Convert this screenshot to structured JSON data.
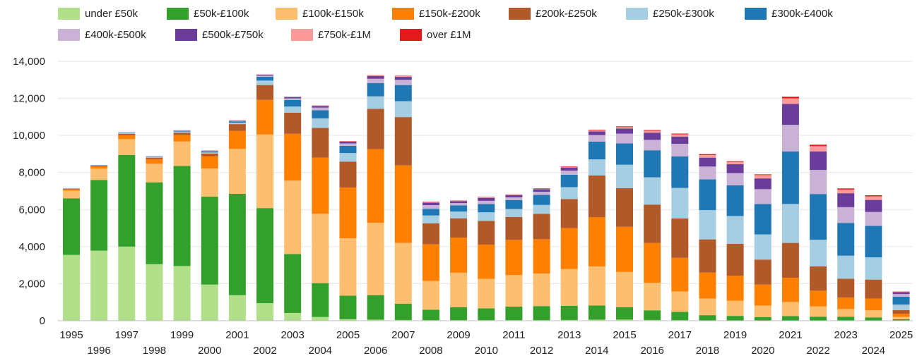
{
  "chart_data": {
    "type": "bar",
    "stacked": true,
    "title": "",
    "xlabel": "",
    "ylabel": "",
    "ylim": [
      0,
      14000
    ],
    "yticks": [
      0,
      2000,
      4000,
      6000,
      8000,
      10000,
      12000,
      14000
    ],
    "ytick_labels": [
      "0",
      "2,000",
      "4,000",
      "6,000",
      "8,000",
      "10,000",
      "12,000",
      "14,000"
    ],
    "grid": true,
    "legend_position": "top",
    "categories": [
      "1995",
      "1996",
      "1997",
      "1998",
      "1999",
      "2000",
      "2001",
      "2002",
      "2003",
      "2004",
      "2005",
      "2006",
      "2007",
      "2008",
      "2009",
      "2010",
      "2011",
      "2012",
      "2013",
      "2014",
      "2015",
      "2016",
      "2017",
      "2018",
      "2019",
      "2020",
      "2021",
      "2022",
      "2023",
      "2024",
      "2025"
    ],
    "series": [
      {
        "name": "under £50k",
        "color": "#b2df8a",
        "values": [
          3550,
          3780,
          4000,
          3050,
          2950,
          1950,
          1380,
          950,
          420,
          200,
          80,
          60,
          40,
          30,
          30,
          30,
          30,
          30,
          40,
          60,
          60,
          40,
          30,
          20,
          20,
          20,
          20,
          20,
          20,
          20,
          10
        ]
      },
      {
        "name": "£50k-£100k",
        "color": "#33a02c",
        "values": [
          3050,
          3820,
          4950,
          4420,
          5400,
          4750,
          5470,
          5130,
          3180,
          1830,
          1270,
          1320,
          880,
          560,
          700,
          640,
          730,
          760,
          760,
          760,
          670,
          520,
          450,
          280,
          240,
          180,
          230,
          200,
          190,
          160,
          70
        ]
      },
      {
        "name": "£100k-£150k",
        "color": "#fdbf6f",
        "values": [
          420,
          620,
          850,
          1000,
          1320,
          1520,
          2420,
          3970,
          3960,
          3740,
          3100,
          3900,
          3280,
          1560,
          1860,
          1590,
          1700,
          1760,
          1990,
          2110,
          1900,
          1490,
          1100,
          900,
          820,
          620,
          760,
          550,
          420,
          380,
          130
        ]
      },
      {
        "name": "£150k-£200k",
        "color": "#ff7f00",
        "values": [
          70,
          110,
          210,
          250,
          350,
          650,
          980,
          1870,
          2530,
          3030,
          2740,
          3980,
          4180,
          1970,
          1900,
          1850,
          1900,
          1850,
          2210,
          2660,
          2440,
          2150,
          1810,
          1400,
          1350,
          1130,
          1310,
          850,
          620,
          640,
          170
        ]
      },
      {
        "name": "£200k-£250k",
        "color": "#b15928",
        "values": [
          30,
          40,
          80,
          80,
          130,
          150,
          360,
          800,
          1140,
          1610,
          1400,
          2180,
          2610,
          1130,
          1040,
          1280,
          1240,
          1370,
          1570,
          2250,
          2080,
          2070,
          2130,
          1790,
          1720,
          1350,
          1880,
          1310,
          1020,
          1020,
          190
        ]
      },
      {
        "name": "£250k-£300k",
        "color": "#a6cee3",
        "values": [
          15,
          15,
          40,
          40,
          60,
          60,
          80,
          240,
          330,
          510,
          460,
          670,
          860,
          430,
          360,
          460,
          430,
          480,
          640,
          870,
          1270,
          1470,
          1650,
          1580,
          1500,
          1360,
          2100,
          1440,
          1240,
          1200,
          300
        ]
      },
      {
        "name": "£300k-£400k",
        "color": "#1f78b4",
        "values": [
          10,
          10,
          20,
          20,
          30,
          60,
          70,
          210,
          350,
          440,
          390,
          710,
          870,
          360,
          330,
          450,
          480,
          540,
          670,
          960,
          1150,
          1460,
          1700,
          1660,
          1660,
          1640,
          2840,
          2470,
          1770,
          1700,
          430
        ]
      },
      {
        "name": "£400k-£500k",
        "color": "#cab2d6",
        "values": [
          5,
          5,
          10,
          10,
          20,
          20,
          30,
          50,
          90,
          140,
          130,
          240,
          280,
          200,
          130,
          170,
          150,
          170,
          220,
          350,
          530,
          560,
          680,
          690,
          660,
          800,
          1430,
          1300,
          850,
          750,
          140
        ]
      },
      {
        "name": "£500k-£750k",
        "color": "#6a3d9a",
        "values": [
          5,
          5,
          10,
          10,
          20,
          20,
          20,
          50,
          70,
          90,
          100,
          140,
          160,
          130,
          100,
          160,
          120,
          140,
          170,
          200,
          270,
          390,
          390,
          480,
          480,
          580,
          1130,
          1000,
          750,
          650,
          100
        ]
      },
      {
        "name": "£750k-£1M",
        "color": "#fb9a99",
        "values": [
          0,
          0,
          0,
          0,
          0,
          5,
          5,
          10,
          15,
          20,
          20,
          30,
          40,
          30,
          20,
          30,
          20,
          30,
          40,
          60,
          80,
          100,
          120,
          140,
          120,
          180,
          300,
          280,
          200,
          190,
          30
        ]
      },
      {
        "name": "over £1M",
        "color": "#e31a1c",
        "values": [
          0,
          0,
          0,
          0,
          0,
          5,
          5,
          10,
          10,
          10,
          10,
          20,
          20,
          20,
          15,
          20,
          15,
          20,
          20,
          30,
          40,
          40,
          40,
          50,
          40,
          40,
          90,
          80,
          60,
          60,
          10
        ]
      }
    ]
  }
}
